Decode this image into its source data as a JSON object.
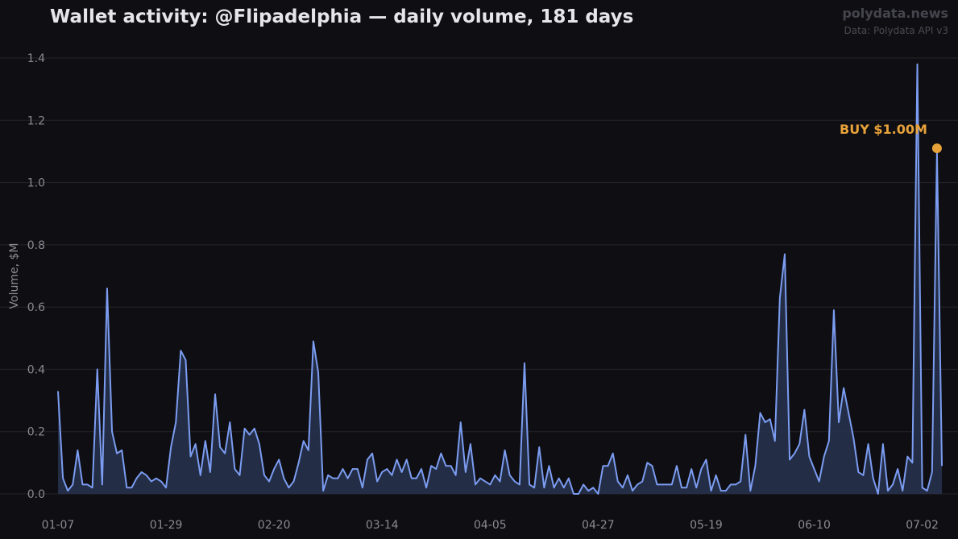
{
  "header": {
    "title": "Wallet activity: @Flipadelphia — daily volume, 181 days",
    "brand": "polydata.news",
    "source": "Data: Polydata API v3"
  },
  "colors": {
    "background": "#0f0e13",
    "line": "#7b9cf0",
    "fill": "#283250",
    "grid": "#24242a",
    "annotation": "#e8a23a"
  },
  "chart_data": {
    "type": "area",
    "title": "Wallet activity: @Flipadelphia — daily volume, 181 days",
    "ylabel": "Volume, $M",
    "xlabel": "",
    "ylim": [
      0,
      1.4
    ],
    "yticks": [
      0,
      0.2,
      0.4,
      0.6,
      0.8,
      1.0,
      1.2,
      1.4
    ],
    "ytick_labels": [
      "0.0",
      "0.2",
      "0.4",
      "0.6",
      "0.8",
      "1.0",
      "1.2",
      "1.4"
    ],
    "xticks": [
      0,
      22,
      44,
      66,
      88,
      110,
      132,
      154,
      176
    ],
    "xtick_labels": [
      "01-07",
      "01-29",
      "02-20",
      "03-14",
      "04-05",
      "04-27",
      "05-19",
      "06-10",
      "07-02"
    ],
    "x_start": "01-07",
    "grid": "horizontal",
    "series": [
      {
        "values": [
          0.33,
          0.05,
          0.01,
          0.03,
          0.14,
          0.03,
          0.03,
          0.02,
          0.4,
          0.03,
          0.66,
          0.2,
          0.13,
          0.14,
          0.02,
          0.02,
          0.05,
          0.07,
          0.06,
          0.04,
          0.05,
          0.04,
          0.02,
          0.15,
          0.23,
          0.46,
          0.43,
          0.12,
          0.16,
          0.06,
          0.17,
          0.07,
          0.32,
          0.15,
          0.13,
          0.23,
          0.08,
          0.06,
          0.21,
          0.19,
          0.21,
          0.16,
          0.06,
          0.04,
          0.08,
          0.11,
          0.05,
          0.02,
          0.04,
          0.1,
          0.17,
          0.14,
          0.49,
          0.39,
          0.01,
          0.06,
          0.05,
          0.05,
          0.08,
          0.05,
          0.08,
          0.08,
          0.02,
          0.11,
          0.13,
          0.04,
          0.07,
          0.08,
          0.06,
          0.11,
          0.07,
          0.11,
          0.05,
          0.05,
          0.08,
          0.02,
          0.09,
          0.08,
          0.13,
          0.09,
          0.09,
          0.06,
          0.23,
          0.07,
          0.16,
          0.03,
          0.05,
          0.04,
          0.03,
          0.06,
          0.04,
          0.14,
          0.06,
          0.04,
          0.03,
          0.42,
          0.03,
          0.02,
          0.15,
          0.02,
          0.09,
          0.02,
          0.05,
          0.02,
          0.05,
          0.0,
          0.0,
          0.03,
          0.01,
          0.02,
          0.0,
          0.09,
          0.09,
          0.13,
          0.04,
          0.02,
          0.06,
          0.01,
          0.03,
          0.04,
          0.1,
          0.09,
          0.03,
          0.03,
          0.03,
          0.03,
          0.09,
          0.02,
          0.02,
          0.08,
          0.02,
          0.08,
          0.11,
          0.01,
          0.06,
          0.01,
          0.01,
          0.03,
          0.03,
          0.04,
          0.19,
          0.01,
          0.09,
          0.26,
          0.23,
          0.24,
          0.17,
          0.63,
          0.77,
          0.11,
          0.13,
          0.16,
          0.27,
          0.12,
          0.08,
          0.04,
          0.12,
          0.17,
          0.59,
          0.23,
          0.34,
          0.26,
          0.18,
          0.07,
          0.06,
          0.16,
          0.05,
          0.0,
          0.16,
          0.01,
          0.03,
          0.08,
          0.01,
          0.12,
          0.1,
          1.38,
          0.02,
          0.01,
          0.07,
          1.1,
          0.09
        ]
      }
    ],
    "annotations": [
      {
        "x": 179,
        "y": 1.11,
        "text": "BUY $1.00M"
      }
    ]
  }
}
